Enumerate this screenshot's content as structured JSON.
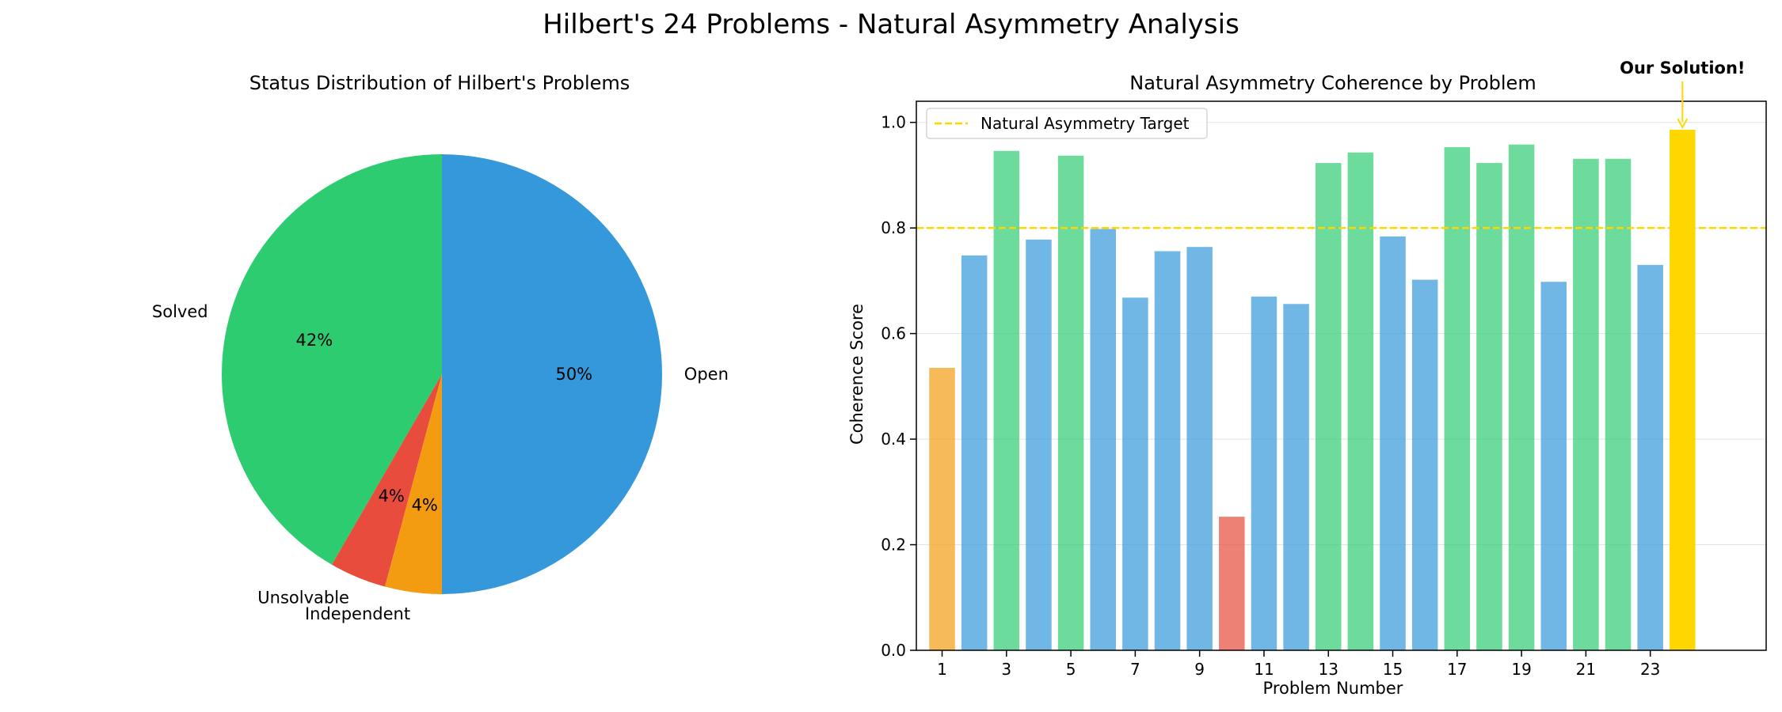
{
  "figure": {
    "title": "Hilbert's 24 Problems - Natural Asymmetry Analysis"
  },
  "colors": {
    "open": "#3498db",
    "solved": "#2ecc71",
    "unsolvable": "#e74c3c",
    "independent": "#f39c12",
    "target": "#ffd700",
    "background": "#ffffff"
  },
  "chart_data": [
    {
      "type": "pie",
      "title": "Status Distribution of Hilbert's Problems",
      "start_angle_deg": 90,
      "direction": "counterclockwise",
      "slices": [
        {
          "label": "Solved",
          "value": 10,
          "pct_label": "42%",
          "color": "#2ecc71"
        },
        {
          "label": "Unsolvable",
          "value": 1,
          "pct_label": "4%",
          "color": "#e74c3c"
        },
        {
          "label": "Independent",
          "value": 1,
          "pct_label": "4%",
          "color": "#f39c12"
        },
        {
          "label": "Open",
          "value": 12,
          "pct_label": "50%",
          "color": "#3498db"
        }
      ]
    },
    {
      "type": "bar",
      "title": "Natural Asymmetry Coherence by Problem",
      "xlabel": "Problem Number",
      "ylabel": "Coherence Score",
      "ylim": [
        0,
        1.04
      ],
      "xlim": [
        0.2,
        26.6
      ],
      "yticks": [
        0.0,
        0.2,
        0.4,
        0.6,
        0.8,
        1.0
      ],
      "ytick_labels": [
        "0.0",
        "0.2",
        "0.4",
        "0.6",
        "0.8",
        "1.0"
      ],
      "xticks": [
        1,
        3,
        5,
        7,
        9,
        11,
        13,
        15,
        17,
        19,
        21,
        23
      ],
      "grid": "horizontal",
      "bar_opacity": 0.7,
      "bars": [
        {
          "x": 1,
          "value": 0.535,
          "color": "#f39c12"
        },
        {
          "x": 2,
          "value": 0.748,
          "color": "#3498db"
        },
        {
          "x": 3,
          "value": 0.946,
          "color": "#2ecc71"
        },
        {
          "x": 4,
          "value": 0.778,
          "color": "#3498db"
        },
        {
          "x": 5,
          "value": 0.937,
          "color": "#2ecc71"
        },
        {
          "x": 6,
          "value": 0.798,
          "color": "#3498db"
        },
        {
          "x": 7,
          "value": 0.668,
          "color": "#3498db"
        },
        {
          "x": 8,
          "value": 0.756,
          "color": "#3498db"
        },
        {
          "x": 9,
          "value": 0.764,
          "color": "#3498db"
        },
        {
          "x": 10,
          "value": 0.253,
          "color": "#e74c3c"
        },
        {
          "x": 11,
          "value": 0.67,
          "color": "#3498db"
        },
        {
          "x": 12,
          "value": 0.656,
          "color": "#3498db"
        },
        {
          "x": 13,
          "value": 0.923,
          "color": "#2ecc71"
        },
        {
          "x": 14,
          "value": 0.943,
          "color": "#2ecc71"
        },
        {
          "x": 15,
          "value": 0.784,
          "color": "#3498db"
        },
        {
          "x": 16,
          "value": 0.702,
          "color": "#3498db"
        },
        {
          "x": 17,
          "value": 0.953,
          "color": "#2ecc71"
        },
        {
          "x": 18,
          "value": 0.923,
          "color": "#2ecc71"
        },
        {
          "x": 19,
          "value": 0.958,
          "color": "#2ecc71"
        },
        {
          "x": 20,
          "value": 0.698,
          "color": "#3498db"
        },
        {
          "x": 21,
          "value": 0.931,
          "color": "#2ecc71"
        },
        {
          "x": 22,
          "value": 0.931,
          "color": "#2ecc71"
        },
        {
          "x": 23,
          "value": 0.73,
          "color": "#3498db"
        }
      ],
      "highlight_bar": {
        "x": 24,
        "value": 0.986,
        "color": "#ffd700"
      },
      "target_line": {
        "y": 0.8,
        "label": "Natural Asymmetry Target",
        "color": "#ffd700",
        "style": "dashed"
      },
      "legend": {
        "position": "upper-left",
        "entries": [
          "Natural Asymmetry Target"
        ]
      },
      "annotation": {
        "text": "Our Solution!",
        "x": 24,
        "y": 0.986,
        "color": "#ffd700"
      }
    }
  ]
}
